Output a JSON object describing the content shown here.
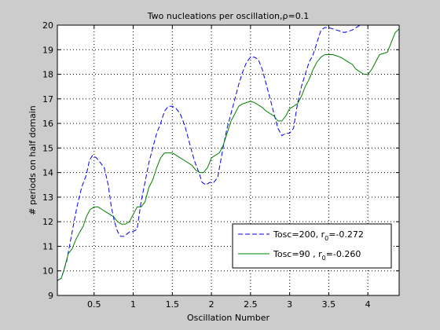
{
  "chart_data": {
    "type": "line",
    "title": "Two nucleations per oscillation,ρ=0.1",
    "xlabel": "Oscillation Number",
    "ylabel": "# periods on half domain",
    "xlim": [
      0.03,
      4.4
    ],
    "ylim": [
      9,
      20
    ],
    "xticks": [
      0.5,
      1,
      1.5,
      2,
      2.5,
      3,
      3.5,
      4
    ],
    "xtick_labels": [
      "0.5",
      "1",
      "1.5",
      "2",
      "2.5",
      "3",
      "3.5",
      "4"
    ],
    "yticks": [
      9,
      10,
      11,
      12,
      13,
      14,
      15,
      16,
      17,
      18,
      19,
      20
    ],
    "ytick_labels": [
      "9",
      "10",
      "11",
      "12",
      "13",
      "14",
      "15",
      "16",
      "17",
      "18",
      "19",
      "20"
    ],
    "grid": true,
    "legend_position": "lower-right",
    "series": [
      {
        "name": "Tosc=200, r",
        "name_sub": "0",
        "name_tail": "=-0.272",
        "color": "#0000ff",
        "style": "dashed",
        "x": [
          0.03,
          0.08,
          0.15,
          0.22,
          0.28,
          0.34,
          0.4,
          0.44,
          0.48,
          0.53,
          0.58,
          0.63,
          0.68,
          0.72,
          0.76,
          0.8,
          0.84,
          0.88,
          0.92,
          0.96,
          1.0,
          1.05,
          1.1,
          1.15,
          1.2,
          1.25,
          1.3,
          1.35,
          1.4,
          1.45,
          1.5,
          1.55,
          1.6,
          1.66,
          1.72,
          1.78,
          1.84,
          1.88,
          1.93,
          1.98,
          2.03,
          2.08,
          2.12,
          2.16,
          2.2,
          2.25,
          2.3,
          2.35,
          2.4,
          2.45,
          2.5,
          2.55,
          2.6,
          2.65,
          2.7,
          2.75,
          2.8,
          2.85,
          2.9,
          2.95,
          3.0,
          3.05,
          3.1,
          3.15,
          3.2,
          3.25,
          3.3,
          3.35,
          3.4,
          3.45,
          3.5,
          3.6,
          3.7,
          3.8,
          3.85,
          3.9,
          4.0,
          4.1,
          4.2,
          4.3,
          4.4
        ],
        "y": [
          9.6,
          9.7,
          10.4,
          11.6,
          12.6,
          13.4,
          13.9,
          14.5,
          14.7,
          14.6,
          14.4,
          14.2,
          13.5,
          12.6,
          12.0,
          11.6,
          11.4,
          11.4,
          11.5,
          11.6,
          11.6,
          11.7,
          12.8,
          13.6,
          14.4,
          15.0,
          15.6,
          16.0,
          16.5,
          16.7,
          16.7,
          16.6,
          16.4,
          15.9,
          15.2,
          14.5,
          14.0,
          13.6,
          13.5,
          13.6,
          13.6,
          13.8,
          14.5,
          15.2,
          15.8,
          16.4,
          17.0,
          17.6,
          18.1,
          18.5,
          18.7,
          18.7,
          18.6,
          18.2,
          17.6,
          17.0,
          16.4,
          15.8,
          15.5,
          15.6,
          15.6,
          15.8,
          16.8,
          17.5,
          18.0,
          18.5,
          18.8,
          19.3,
          19.8,
          19.9,
          19.9,
          19.8,
          19.7,
          19.8,
          19.9,
          20.0,
          20.0,
          20.0,
          20.0,
          20.0,
          20.0
        ]
      },
      {
        "name": "Tosc=90   , r",
        "name_sub": "0",
        "name_tail": "=-0.260",
        "color": "#008000",
        "style": "solid",
        "x": [
          0.03,
          0.08,
          0.12,
          0.17,
          0.22,
          0.27,
          0.32,
          0.36,
          0.4,
          0.45,
          0.5,
          0.55,
          0.6,
          0.65,
          0.7,
          0.75,
          0.8,
          0.85,
          0.9,
          0.95,
          1.0,
          1.05,
          1.1,
          1.15,
          1.2,
          1.25,
          1.3,
          1.35,
          1.4,
          1.45,
          1.5,
          1.55,
          1.6,
          1.65,
          1.7,
          1.75,
          1.8,
          1.85,
          1.9,
          1.95,
          2.0,
          2.05,
          2.1,
          2.15,
          2.2,
          2.25,
          2.3,
          2.35,
          2.4,
          2.45,
          2.5,
          2.55,
          2.6,
          2.65,
          2.7,
          2.75,
          2.8,
          2.85,
          2.9,
          2.95,
          3.0,
          3.05,
          3.1,
          3.15,
          3.2,
          3.25,
          3.3,
          3.35,
          3.4,
          3.45,
          3.5,
          3.55,
          3.6,
          3.65,
          3.7,
          3.75,
          3.8,
          3.85,
          3.9,
          3.95,
          4.0,
          4.05,
          4.1,
          4.15,
          4.2,
          4.25,
          4.3,
          4.35,
          4.4
        ],
        "y": [
          9.6,
          9.7,
          10.1,
          10.7,
          10.9,
          11.3,
          11.6,
          11.8,
          12.2,
          12.5,
          12.6,
          12.6,
          12.5,
          12.4,
          12.3,
          12.2,
          12.0,
          11.9,
          11.9,
          12.0,
          12.3,
          12.6,
          12.6,
          12.8,
          13.4,
          13.7,
          14.2,
          14.6,
          14.8,
          14.8,
          14.8,
          14.7,
          14.6,
          14.5,
          14.4,
          14.3,
          14.1,
          14.0,
          14.0,
          14.2,
          14.6,
          14.7,
          14.8,
          15.1,
          15.6,
          16.1,
          16.4,
          16.7,
          16.8,
          16.85,
          16.9,
          16.85,
          16.75,
          16.65,
          16.5,
          16.4,
          16.3,
          16.1,
          16.1,
          16.3,
          16.6,
          16.7,
          16.8,
          17.1,
          17.5,
          17.8,
          18.2,
          18.5,
          18.7,
          18.8,
          18.8,
          18.8,
          18.75,
          18.7,
          18.6,
          18.5,
          18.4,
          18.2,
          18.1,
          18.0,
          18.0,
          18.2,
          18.5,
          18.8,
          18.85,
          18.9,
          19.3,
          19.7,
          19.85
        ]
      }
    ]
  }
}
